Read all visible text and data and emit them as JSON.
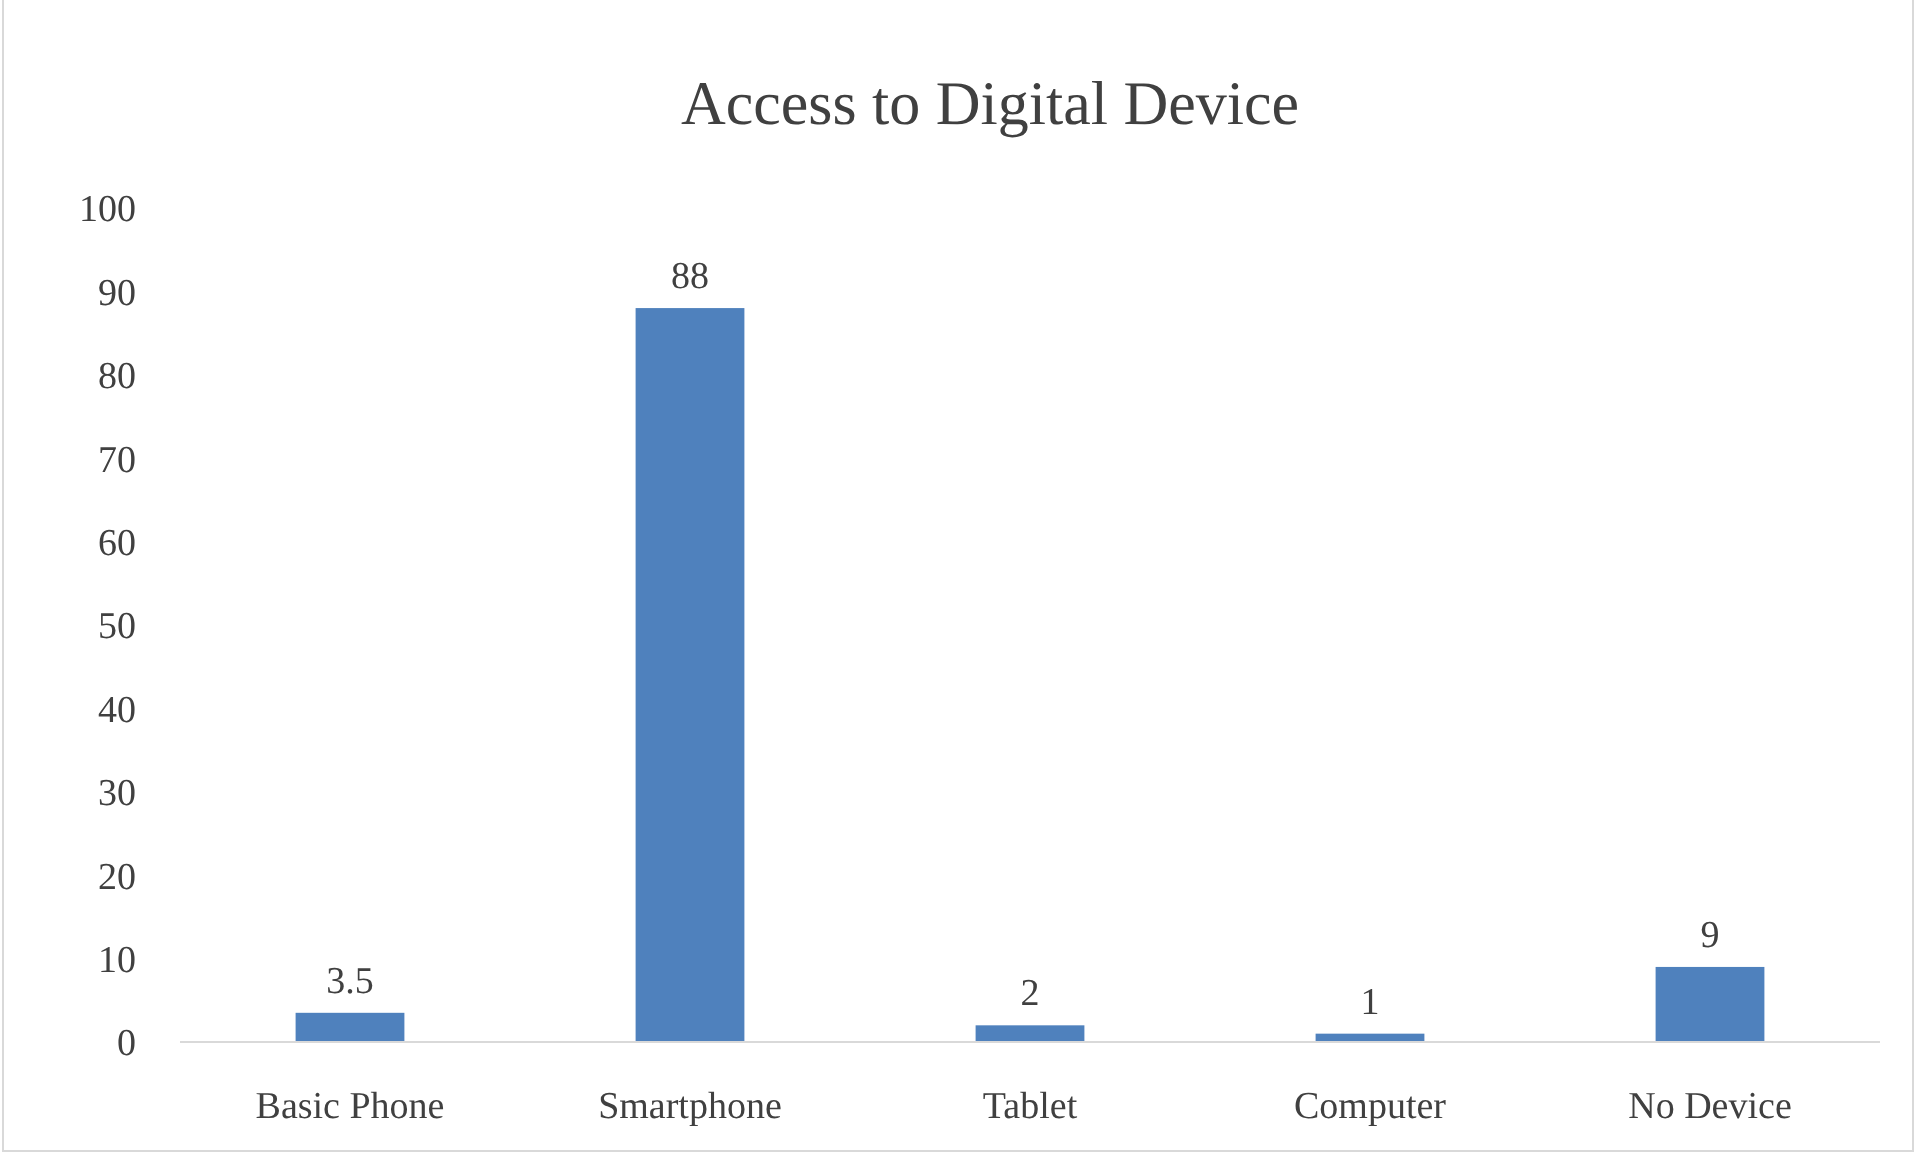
{
  "chart_data": {
    "type": "bar",
    "title": "Access to Digital Device",
    "categories": [
      "Basic Phone",
      "Smartphone",
      "Tablet",
      "Computer",
      "No Device"
    ],
    "values": [
      3.5,
      88,
      2,
      1,
      9
    ],
    "color": "#4f81bd",
    "data_labels": true,
    "ylim": [
      0,
      100
    ],
    "yticks": [
      0,
      10,
      20,
      30,
      40,
      50,
      60,
      70,
      80,
      90,
      100
    ],
    "grid": false
  }
}
